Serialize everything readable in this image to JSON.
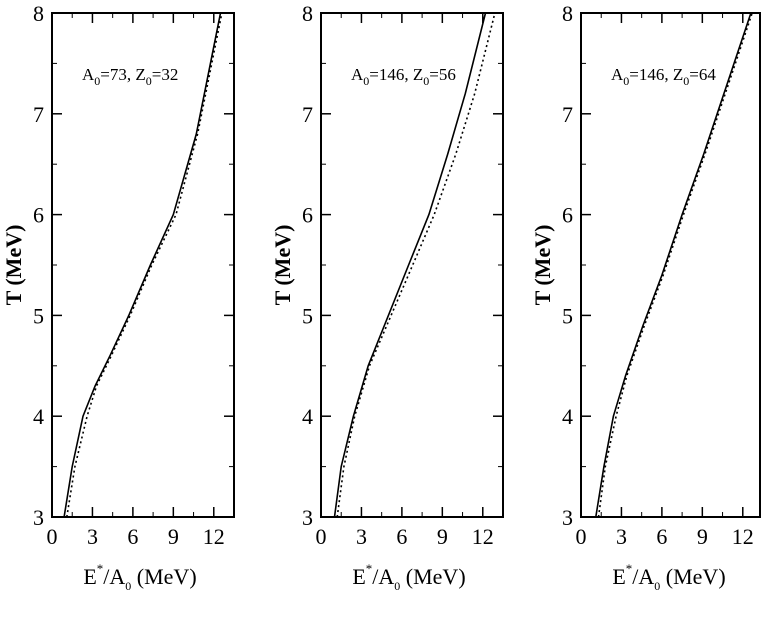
{
  "chart_data": [
    {
      "type": "line",
      "annotation": {
        "a_sym": "A",
        "a_sub": "0",
        "a_val": "=73, ",
        "z_sym": "Z",
        "z_sub": "0",
        "z_val": "=32"
      },
      "ylabel": "T (MeV)",
      "xlabel": {
        "e": "E",
        "star": "*",
        "mid": "/A",
        "sub": "0",
        "unit": " (MeV)"
      },
      "xlim": [
        0,
        13.5
      ],
      "ylim": [
        3,
        8
      ],
      "xticks": [
        0,
        3,
        6,
        9,
        12
      ],
      "yticks": [
        3,
        4,
        5,
        6,
        7,
        8
      ],
      "series": [
        {
          "style": "solid",
          "x": [
            0.9,
            1.5,
            2.3,
            3.2,
            4.3,
            5.7,
            7.3,
            9.0,
            10.7,
            12.5
          ],
          "y": [
            3.0,
            3.5,
            4.0,
            4.3,
            4.6,
            5.0,
            5.5,
            6.0,
            6.8,
            8.0
          ]
        },
        {
          "style": "dotted",
          "x": [
            1.1,
            1.7,
            2.6,
            3.3,
            4.4,
            5.8,
            7.4,
            9.2,
            10.8,
            12.6
          ],
          "y": [
            3.0,
            3.5,
            4.0,
            4.3,
            4.6,
            5.0,
            5.5,
            6.0,
            6.8,
            8.0
          ]
        }
      ]
    },
    {
      "type": "line",
      "annotation": {
        "a_sym": "A",
        "a_sub": "0",
        "a_val": "=146, ",
        "z_sym": "Z",
        "z_sub": "0",
        "z_val": "=56"
      },
      "ylabel": "T (MeV)",
      "xlabel": {
        "e": "E",
        "star": "*",
        "mid": "/A",
        "sub": "0",
        "unit": " (MeV)"
      },
      "xlim": [
        0,
        13.5
      ],
      "ylim": [
        3,
        8
      ],
      "xticks": [
        0,
        3,
        6,
        9,
        12
      ],
      "yticks": [
        3,
        4,
        5,
        6,
        7,
        8
      ],
      "series": [
        {
          "style": "solid",
          "x": [
            1.0,
            1.5,
            2.4,
            3.5,
            5.0,
            6.5,
            8.0,
            9.4,
            10.7,
            12.2
          ],
          "y": [
            3.0,
            3.5,
            4.0,
            4.5,
            5.0,
            5.5,
            6.0,
            6.6,
            7.2,
            8.0
          ]
        },
        {
          "style": "dotted",
          "x": [
            1.2,
            1.7,
            2.5,
            3.6,
            5.2,
            6.8,
            8.4,
            10.0,
            11.4,
            12.9
          ],
          "y": [
            3.0,
            3.5,
            4.0,
            4.5,
            5.0,
            5.5,
            6.0,
            6.6,
            7.2,
            8.0
          ]
        }
      ]
    },
    {
      "type": "line",
      "annotation": {
        "a_sym": "A",
        "a_sub": "0",
        "a_val": "=146, ",
        "z_sym": "Z",
        "z_sub": "0",
        "z_val": "=64"
      },
      "ylabel": "T (MeV)",
      "xlabel": {
        "e": "E",
        "star": "*",
        "mid": "/A",
        "sub": "0",
        "unit": " (MeV)"
      },
      "xlim": [
        0,
        13.5
      ],
      "ylim": [
        3,
        8
      ],
      "xticks": [
        0,
        3,
        6,
        9,
        12
      ],
      "yticks": [
        3,
        4,
        5,
        6,
        7,
        8
      ],
      "series": [
        {
          "style": "solid",
          "x": [
            1.1,
            1.7,
            2.4,
            3.3,
            4.6,
            6.0,
            7.5,
            9.1,
            10.6,
            12.6
          ],
          "y": [
            3.0,
            3.5,
            4.0,
            4.4,
            4.9,
            5.4,
            6.0,
            6.6,
            7.2,
            8.0
          ]
        },
        {
          "style": "dotted",
          "x": [
            1.3,
            1.8,
            2.6,
            3.4,
            4.7,
            6.1,
            7.6,
            9.2,
            10.7,
            12.7
          ],
          "y": [
            3.0,
            3.5,
            4.0,
            4.4,
            4.9,
            5.4,
            6.0,
            6.6,
            7.2,
            8.0
          ]
        }
      ]
    }
  ]
}
